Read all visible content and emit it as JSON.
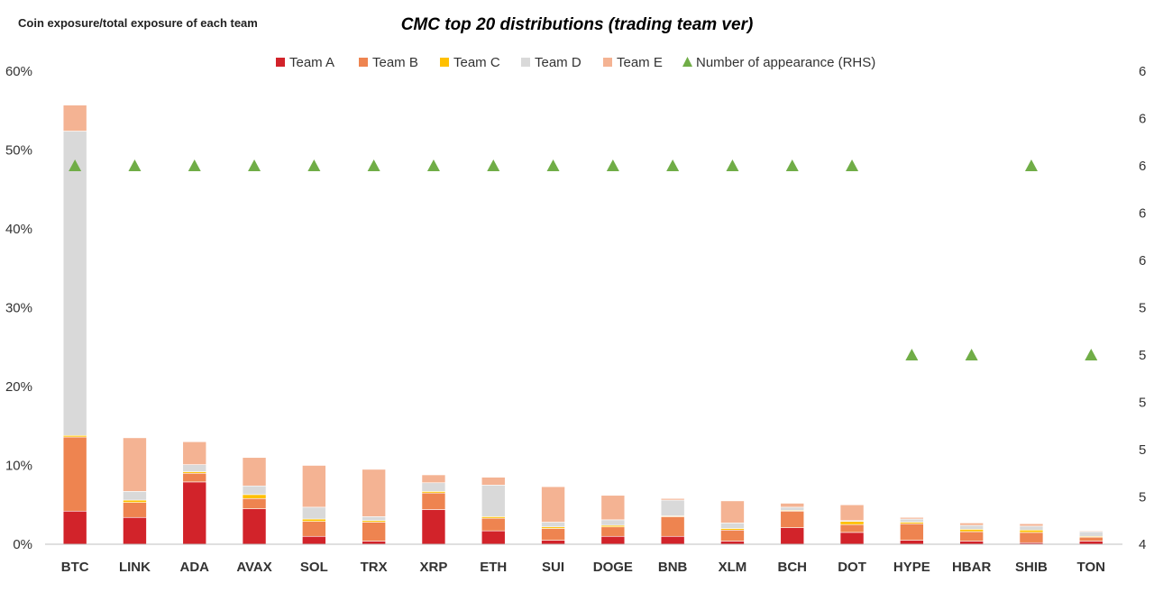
{
  "chart_data": {
    "type": "bar",
    "stacked": true,
    "title": "CMC top 20 distributions (trading team ver)",
    "ylabel": "Coin exposure/total exposure of each team",
    "ylim": [
      0,
      60
    ],
    "yticks": [
      "0%",
      "10%",
      "20%",
      "30%",
      "40%",
      "50%",
      "60%"
    ],
    "y2lim": [
      4,
      6.5
    ],
    "y2ticks": [
      "4",
      "5",
      "5",
      "5",
      "5",
      "5",
      "6",
      "6",
      "6",
      "6",
      "6"
    ],
    "grid": false,
    "legend_position": "top",
    "categories": [
      "BTC",
      "LINK",
      "ADA",
      "AVAX",
      "SOL",
      "TRX",
      "XRP",
      "ETH",
      "SUI",
      "DOGE",
      "BNB",
      "XLM",
      "BCH",
      "DOT",
      "HYPE",
      "HBAR",
      "SHIB",
      "TON"
    ],
    "series": [
      {
        "name": "Team A",
        "color": "#D2232A",
        "values": [
          4.2,
          3.4,
          7.9,
          4.5,
          1.0,
          0.4,
          4.4,
          1.7,
          0.5,
          1.0,
          1.0,
          0.4,
          2.1,
          1.5,
          0.5,
          0.4,
          0.2,
          0.4
        ]
      },
      {
        "name": "Team B",
        "color": "#EE8450",
        "values": [
          9.4,
          1.9,
          1.1,
          1.3,
          1.9,
          2.4,
          2.1,
          1.6,
          1.5,
          1.2,
          2.5,
          1.4,
          2.1,
          1.0,
          2.1,
          1.2,
          1.3,
          0.5
        ]
      },
      {
        "name": "Team C",
        "color": "#FFC000",
        "values": [
          0.2,
          0.3,
          0.2,
          0.5,
          0.3,
          0.2,
          0.2,
          0.2,
          0.2,
          0.2,
          0.1,
          0.2,
          0.1,
          0.4,
          0.2,
          0.3,
          0.3,
          0.1
        ]
      },
      {
        "name": "Team D",
        "color": "#D9D9D9",
        "values": [
          38.6,
          1.1,
          0.9,
          1.1,
          1.5,
          0.5,
          1.1,
          4.0,
          0.6,
          0.7,
          2.0,
          0.7,
          0.4,
          0.1,
          0.4,
          0.5,
          0.5,
          0.6
        ]
      },
      {
        "name": "Team E",
        "color": "#F4B393",
        "values": [
          3.3,
          6.8,
          2.9,
          3.6,
          5.3,
          6.0,
          1.0,
          1.0,
          4.5,
          3.1,
          0.2,
          2.8,
          0.5,
          2.0,
          0.2,
          0.3,
          0.3,
          0.1
        ]
      }
    ],
    "line_series": {
      "name": "Number of appearance (RHS)",
      "color": "#70AD47",
      "axis": "right",
      "values": [
        6,
        6,
        6,
        6,
        6,
        6,
        6,
        6,
        6,
        6,
        6,
        6,
        6,
        6,
        5,
        5,
        6,
        5
      ]
    }
  }
}
